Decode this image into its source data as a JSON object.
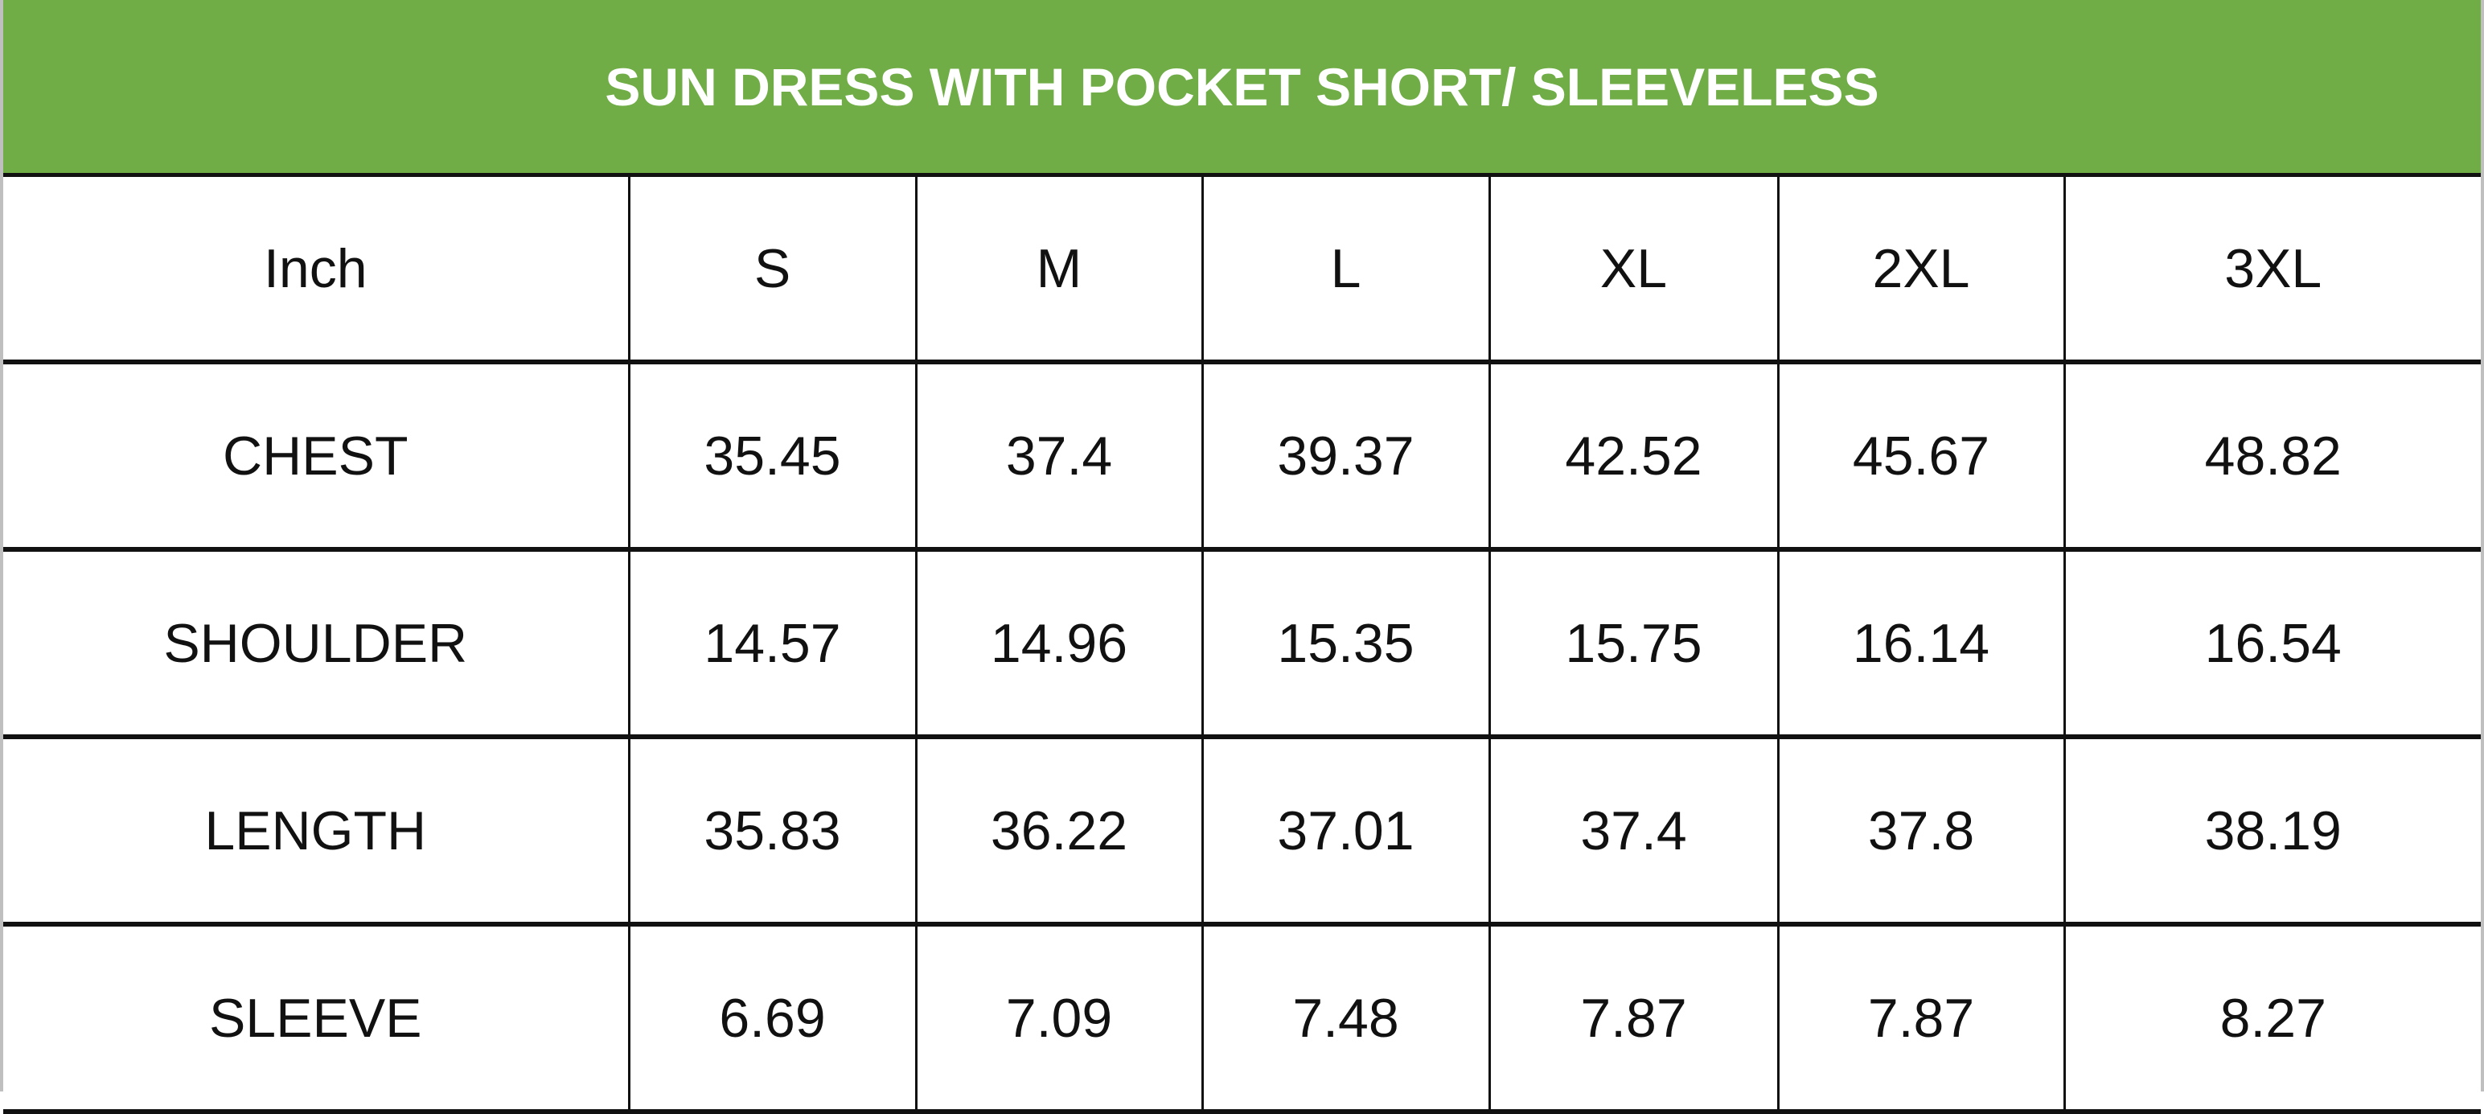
{
  "title": "SUN DRESS WITH POCKET SHORT/ SLEEVELESS",
  "colors": {
    "header_bg": "#70ad47",
    "header_text": "#ffffff"
  },
  "table": {
    "unit_label": "Inch",
    "sizes": [
      "S",
      "M",
      "L",
      "XL",
      "2XL",
      "3XL"
    ],
    "rows": [
      {
        "label": "CHEST",
        "values": [
          "35.45",
          "37.4",
          "39.37",
          "42.52",
          "45.67",
          "48.82"
        ]
      },
      {
        "label": "SHOULDER",
        "values": [
          "14.57",
          "14.96",
          "15.35",
          "15.75",
          "16.14",
          "16.54"
        ]
      },
      {
        "label": "LENGTH",
        "values": [
          "35.83",
          "36.22",
          "37.01",
          "37.4",
          "37.8",
          "38.19"
        ]
      },
      {
        "label": "SLEEVE",
        "values": [
          "6.69",
          "7.09",
          "7.48",
          "7.87",
          "7.87",
          "8.27"
        ]
      }
    ]
  }
}
